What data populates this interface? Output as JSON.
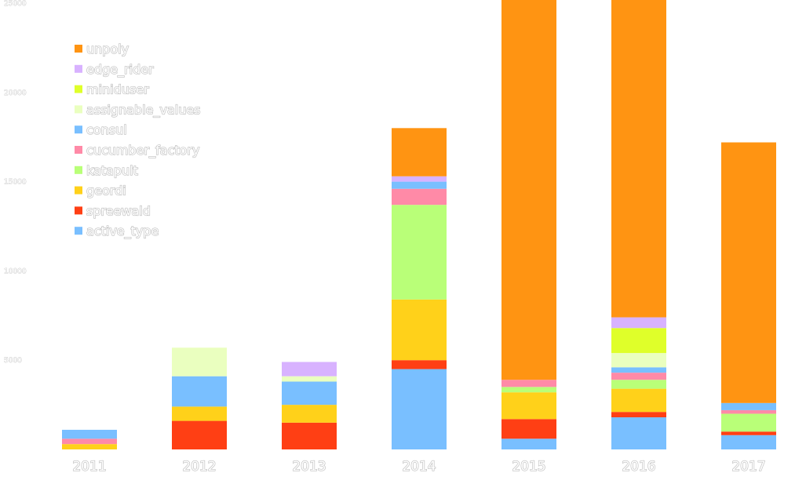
{
  "chart_data": {
    "type": "bar",
    "stacked": true,
    "title": "",
    "xlabel": "",
    "ylabel": "",
    "ylim": [
      0,
      25000
    ],
    "yticks": [
      "5000",
      "10000",
      "15000",
      "20000",
      "25000"
    ],
    "grid": false,
    "legend_position": "top-left",
    "categories": [
      "2011",
      "2012",
      "2013",
      "2014",
      "2015",
      "2016",
      "2017"
    ],
    "series": [
      {
        "name": "active_type",
        "color": "#79bfff",
        "values": [
          0,
          0,
          0,
          4500,
          600,
          1800,
          800
        ]
      },
      {
        "name": "spreewald",
        "color": "#ff3f14",
        "values": [
          0,
          1600,
          1500,
          500,
          1100,
          300,
          200
        ]
      },
      {
        "name": "geordi",
        "color": "#ffd11a",
        "values": [
          300,
          800,
          1000,
          3400,
          1500,
          1300,
          0
        ]
      },
      {
        "name": "katapult",
        "color": "#b9ff78",
        "values": [
          0,
          0,
          0,
          5300,
          300,
          500,
          1000
        ]
      },
      {
        "name": "cucumber_factory",
        "color": "#ff8aa7",
        "values": [
          300,
          0,
          0,
          900,
          400,
          400,
          200
        ]
      },
      {
        "name": "consul",
        "color": "#79bfff",
        "values": [
          500,
          1700,
          1300,
          400,
          0,
          300,
          400
        ]
      },
      {
        "name": "assignable_values",
        "color": "#eaffbf",
        "values": [
          0,
          1600,
          300,
          0,
          0,
          800,
          0
        ]
      },
      {
        "name": "miniduser",
        "color": "#dfff2a",
        "values": [
          0,
          0,
          0,
          0,
          0,
          1400,
          0
        ]
      },
      {
        "name": "edge_rider",
        "color": "#d8b2ff",
        "values": [
          0,
          0,
          800,
          300,
          0,
          600,
          0
        ]
      },
      {
        "name": "unpoly",
        "color": "#ff9412",
        "values": [
          0,
          0,
          0,
          2700,
          22000,
          18800,
          14600
        ]
      }
    ]
  }
}
